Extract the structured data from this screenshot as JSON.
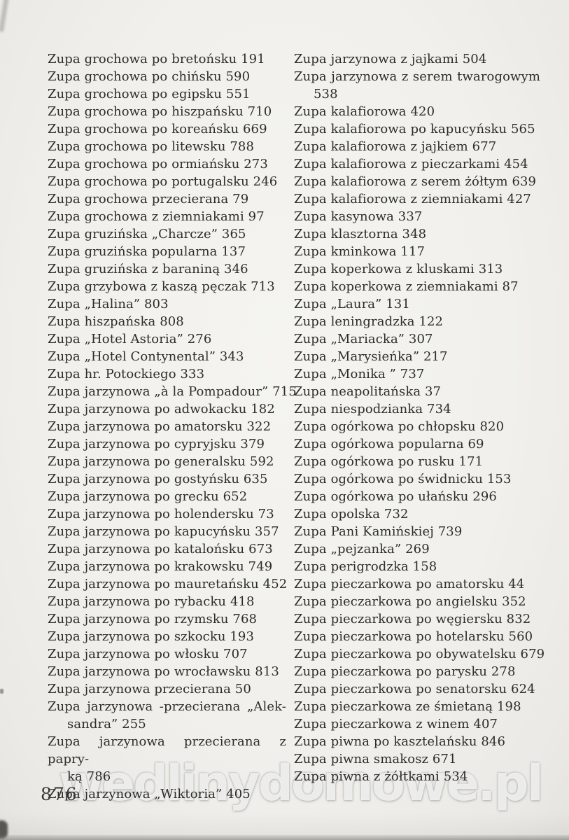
{
  "page": {
    "number": "876",
    "watermark": "wedlinydomowe.pl",
    "paper_color": "#f1f0ec",
    "ink_color": "#2e2d29"
  },
  "index": {
    "left_column": [
      [
        "Zupa grochowa po bretońsku 191"
      ],
      [
        "Zupa grochowa po chińsku 590"
      ],
      [
        "Zupa grochowa po egipsku 551"
      ],
      [
        "Zupa grochowa po hiszpańsku 710"
      ],
      [
        "Zupa grochowa po koreańsku 669"
      ],
      [
        "Zupa grochowa po litewsku 788"
      ],
      [
        "Zupa grochowa po ormiańsku 273"
      ],
      [
        "Zupa grochowa po portugalsku 246"
      ],
      [
        "Zupa grochowa przecierana 79"
      ],
      [
        "Zupa grochowa z ziemniakami 97"
      ],
      [
        "Zupa gruzińska „Charcze” 365"
      ],
      [
        "Zupa gruzińska popularna 137"
      ],
      [
        "Zupa gruzińska z baraniną 346"
      ],
      [
        "Zupa grzybowa z kaszą pęczak 713"
      ],
      [
        "Zupa „Halina” 803"
      ],
      [
        "Zupa hiszpańska 808"
      ],
      [
        "Zupa „Hotel Astoria” 276"
      ],
      [
        "Zupa „Hotel Contynental” 343"
      ],
      [
        "Zupa hr. Potockiego 333"
      ],
      [
        "Zupa jarzynowa „à la Pompadour” 715"
      ],
      [
        "Zupa jarzynowa po adwokacku 182"
      ],
      [
        "Zupa jarzynowa po amatorsku 322"
      ],
      [
        "Zupa jarzynowa po cypryjsku 379"
      ],
      [
        "Zupa jarzynowa po generalsku 592"
      ],
      [
        "Zupa jarzynowa po gostyńsku 635"
      ],
      [
        "Zupa jarzynowa po grecku 652"
      ],
      [
        "Zupa jarzynowa po holendersku 73"
      ],
      [
        "Zupa jarzynowa po kapucyńsku 357"
      ],
      [
        "Zupa jarzynowa po katalońsku 673"
      ],
      [
        "Zupa jarzynowa po krakowsku 749"
      ],
      [
        "Zupa jarzynowa po mauretańsku 452"
      ],
      [
        "Zupa jarzynowa po rybacku 418"
      ],
      [
        "Zupa jarzynowa po rzymsku 768"
      ],
      [
        "Zupa jarzynowa po szkocku 193"
      ],
      [
        "Zupa jarzynowa po włosku 707"
      ],
      [
        "Zupa jarzynowa po wrocławsku 813"
      ],
      [
        "Zupa jarzynowa przecierana 50"
      ],
      [
        "Zupa jarzynowa -przecierana „Alek-",
        "sandra” 255"
      ],
      [
        "Zupa jarzynowa przecierana z papry-",
        "ką 786"
      ],
      [
        "Zupa jarzynowa „Wiktoria” 405"
      ]
    ],
    "right_column": [
      [
        "Zupa jarzynowa z jajkami 504"
      ],
      [
        "Zupa jarzynowa z serem twarogowym",
        "538"
      ],
      [
        "Zupa kalafiorowa 420"
      ],
      [
        "Zupa kalafiorowa po kapucyńsku 565"
      ],
      [
        "Zupa kalafiorowa z jajkiem 677"
      ],
      [
        "Zupa kalafiorowa z pieczarkami 454"
      ],
      [
        "Zupa kalafiorowa z serem żółtym 639"
      ],
      [
        "Zupa kalafiorowa z ziemniakami 427"
      ],
      [
        "Zupa kasynowa 337"
      ],
      [
        "Zupa klasztorna 348"
      ],
      [
        "Zupa kminkowa 117"
      ],
      [
        "Zupa koperkowa z kluskami 313"
      ],
      [
        "Zupa koperkowa z ziemniakami 87"
      ],
      [
        "Zupa „Laura” 131"
      ],
      [
        "Zupa leningradzka 122"
      ],
      [
        "Zupa „Mariacka” 307"
      ],
      [
        "Zupa „Marysieńka” 217"
      ],
      [
        "Zupa „Monika ” 737"
      ],
      [
        "Zupa neapolitańska 37"
      ],
      [
        "Zupa niespodzianka 734"
      ],
      [
        "Zupa ogórkowa po chłopsku 820"
      ],
      [
        "Zupa ogórkowa popularna 69"
      ],
      [
        "Zupa ogórkowa po rusku 171"
      ],
      [
        "Zupa ogórkowa po świdnicku 153"
      ],
      [
        "Zupa ogórkowa po ułańsku 296"
      ],
      [
        "Zupa opolska 732"
      ],
      [
        "Zupa Pani Kamińskiej 739"
      ],
      [
        "Zupa „pejzanka” 269"
      ],
      [
        "Zupa perigrodzka 158"
      ],
      [
        "Zupa pieczarkowa po amatorsku 44"
      ],
      [
        "Zupa pieczarkowa po angielsku 352"
      ],
      [
        "Zupa pieczarkowa po węgiersku 832"
      ],
      [
        "Zupa pieczarkowa po hotelarsku 560"
      ],
      [
        "Zupa pieczarkowa po obywatelsku 679"
      ],
      [
        "Zupa pieczarkowa po parysku 278"
      ],
      [
        "Zupa pieczarkowa po senatorsku 624"
      ],
      [
        "Zupa pieczarkowa ze śmietaną 198"
      ],
      [
        "Zupa pieczarkowa z winem 407"
      ],
      [
        "Zupa piwna po kasztelańsku 846"
      ],
      [
        "Zupa piwna smakosz 671"
      ],
      [
        "Zupa piwna z żółtkami 534"
      ]
    ]
  }
}
